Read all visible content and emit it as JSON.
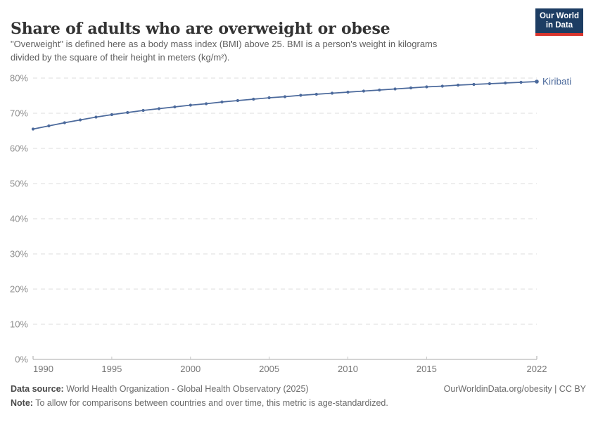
{
  "header": {
    "title": "Share of adults who are overweight or obese",
    "subtitle_line1": "\"Overweight\" is defined here as a body mass index (BMI) above 25. BMI is a person's weight in kilograms",
    "subtitle_line2": "divided by the square of their height in meters (kg/m²).",
    "logo": {
      "line1": "Our World",
      "line2": "in Data",
      "bg_color": "#1d3d63",
      "accent_color": "#d8352e"
    }
  },
  "chart_data": {
    "type": "line",
    "title": "Share of adults who are overweight or obese",
    "xlabel": "",
    "ylabel": "",
    "xlim": [
      1990,
      2022
    ],
    "ylim": [
      0,
      80
    ],
    "xticks": [
      1990,
      1995,
      2000,
      2005,
      2010,
      2015,
      2022
    ],
    "yticks": [
      0,
      10,
      20,
      30,
      40,
      50,
      60,
      70,
      80
    ],
    "ytick_suffix": "%",
    "grid": "horizontal-dashed",
    "gridline_color": "#dddddd",
    "axis_color": "#a8a8a8",
    "minor_tick_color": "#c6c6c6",
    "ytick_label_color": "#8f8f8f",
    "xtick_label_color": "#777777",
    "legend_position": "end-of-line",
    "series": [
      {
        "name": "Kiribati",
        "color": "#4C6A9C",
        "x": [
          1990,
          1991,
          1992,
          1993,
          1994,
          1995,
          1996,
          1997,
          1998,
          1999,
          2000,
          2001,
          2002,
          2003,
          2004,
          2005,
          2006,
          2007,
          2008,
          2009,
          2010,
          2011,
          2012,
          2013,
          2014,
          2015,
          2016,
          2017,
          2018,
          2019,
          2020,
          2021,
          2022
        ],
        "values": [
          65.5,
          66.4,
          67.3,
          68.1,
          68.9,
          69.6,
          70.2,
          70.8,
          71.3,
          71.8,
          72.3,
          72.7,
          73.2,
          73.6,
          74.0,
          74.4,
          74.7,
          75.1,
          75.4,
          75.7,
          76.0,
          76.3,
          76.6,
          76.9,
          77.2,
          77.5,
          77.7,
          78.0,
          78.2,
          78.4,
          78.6,
          78.8,
          79.0
        ]
      }
    ]
  },
  "footer": {
    "datasource_label": "Data source:",
    "datasource_text": " World Health Organization - Global Health Observatory (2025)",
    "rights_text": "OurWorldinData.org/obesity | CC BY",
    "note_label": "Note:",
    "note_text": " To allow for comparisons between countries and over time, this metric is age-standardized."
  }
}
